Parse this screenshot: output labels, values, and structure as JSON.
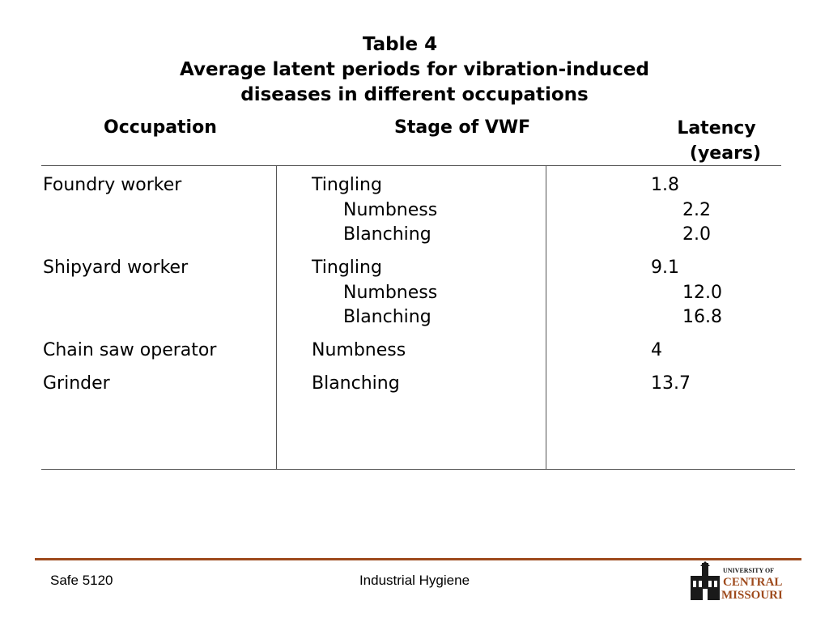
{
  "slide": {
    "title": "Table 4",
    "subtitle_line1": "Average latent periods for vibration-induced",
    "subtitle_line2": "diseases in different occupations"
  },
  "table": {
    "headers": {
      "occupation": "Occupation",
      "stage": "Stage of VWF",
      "latency_line1": "Latency",
      "latency_line2": "(years)"
    },
    "rows": [
      {
        "occupation": "Foundry worker",
        "stages": [
          "Tingling",
          "Numbness",
          "Blanching"
        ],
        "latency": [
          "1.8",
          "2.2",
          "2.0"
        ]
      },
      {
        "occupation": "Shipyard worker",
        "stages": [
          "Tingling",
          "Numbness",
          "Blanching"
        ],
        "latency": [
          "9.1",
          "12.0",
          "16.8"
        ]
      },
      {
        "occupation": "Chain saw operator",
        "stages": [
          "Numbness"
        ],
        "latency": [
          "4"
        ]
      },
      {
        "occupation": "Grinder",
        "stages": [
          "Blanching"
        ],
        "latency": [
          "13.7"
        ]
      }
    ]
  },
  "footer": {
    "course": "Safe 5120",
    "topic": "Industrial Hygiene",
    "logo_line1": "UNIVERSITY OF",
    "logo_line2": "CENTRAL",
    "logo_line3": "MISSOURI",
    "accent_color": "#9e4a1c"
  }
}
